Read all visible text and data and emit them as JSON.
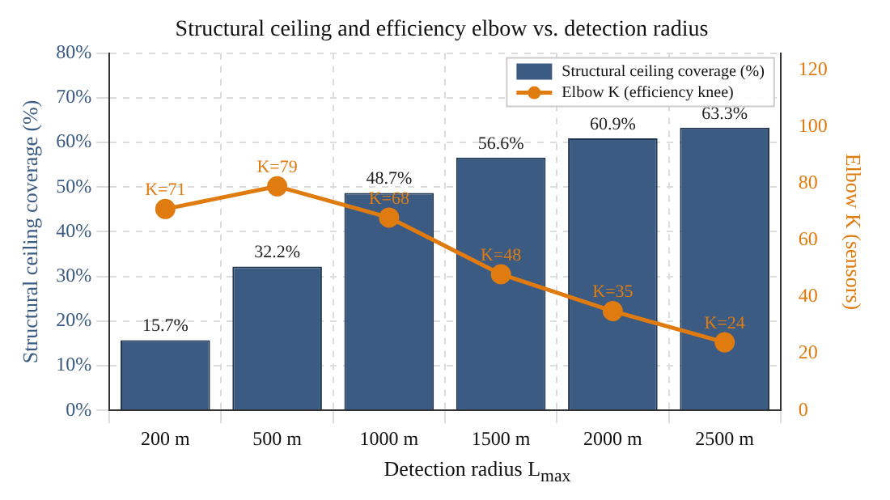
{
  "chart_data": {
    "type": "bar",
    "title": "Structural ceiling and efficiency elbow vs. detection radius",
    "xlabel": "Detection radius L$_{max}$",
    "ylabel": "Structural ceiling coverage (%)",
    "y2label": "Elbow K (sensors)",
    "categories": [
      "200 m",
      "500 m",
      "1000 m",
      "1500 m",
      "2000 m",
      "2500 m"
    ],
    "series": [
      {
        "name": "Structural ceiling coverage (%)",
        "color": "#3b5b82",
        "values": [
          15.7,
          32.2,
          48.7,
          56.6,
          60.9,
          63.3
        ],
        "value_labels": [
          "15.7%",
          "32.2%",
          "48.7%",
          "56.6%",
          "60.9%",
          "63.3%"
        ]
      },
      {
        "name": "Elbow K (efficiency knee)",
        "type": "line",
        "axis": "y2",
        "color": "#e07b10",
        "values": [
          71,
          79,
          68,
          48,
          35,
          24
        ],
        "value_labels": [
          "K=71",
          "K=79",
          "K=68",
          "K=48",
          "K=35",
          "K=24"
        ],
        "marker": "circle"
      }
    ],
    "ylim": [
      0,
      80
    ],
    "yticks": [
      {
        "value": 0,
        "label": "0%"
      },
      {
        "value": 10,
        "label": "10%"
      },
      {
        "value": 20,
        "label": "20%"
      },
      {
        "value": 30,
        "label": "30%"
      },
      {
        "value": 40,
        "label": "40%"
      },
      {
        "value": 50,
        "label": "50%"
      },
      {
        "value": 60,
        "label": "60%"
      },
      {
        "value": 70,
        "label": "70%"
      },
      {
        "value": 80,
        "label": "80%"
      }
    ],
    "y2lim": [
      0,
      126
    ],
    "y2ticks": [
      0,
      20,
      40,
      60,
      80,
      100,
      120
    ],
    "grid": true,
    "legend": "top right"
  }
}
